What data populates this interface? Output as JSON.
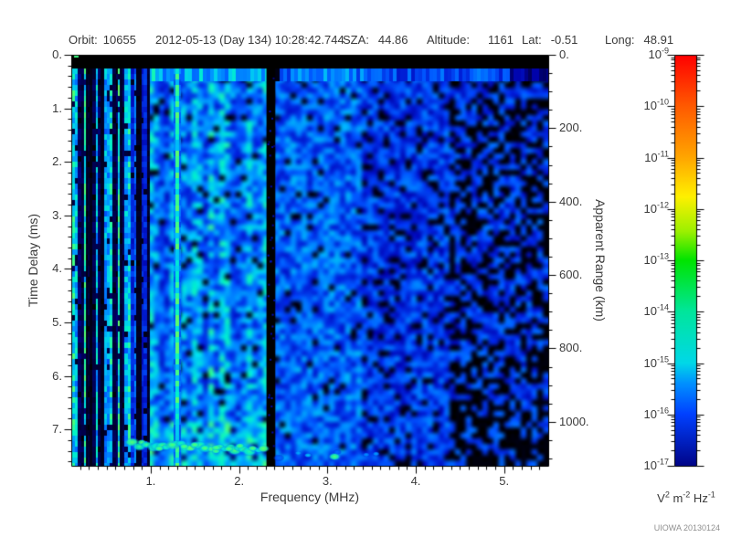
{
  "header": {
    "items": [
      {
        "label": "Orbit:",
        "value": "10655"
      },
      {
        "label": "",
        "value": "2012-05-13 (Day 134) 10:28:42.744"
      },
      {
        "label": "SZA:",
        "value": "44.86"
      },
      {
        "label": "Altitude:",
        "value": "1161"
      },
      {
        "label": "Lat:",
        "value": "-0.51"
      },
      {
        "label": "Long:",
        "value": "48.91"
      }
    ]
  },
  "chart_data": {
    "type": "heatmap",
    "xlabel": "Frequency (MHz)",
    "ylabel_left": "Time Delay (ms)",
    "ylabel_right": "Apparent Range (km)",
    "x_axis": {
      "range_mhz": [
        0.1,
        5.5
      ],
      "ticks": [
        1,
        2,
        3,
        4,
        5
      ],
      "tick_labels": [
        "1.",
        "2.",
        "3.",
        "4.",
        "5."
      ],
      "minor_step": 0.1
    },
    "y_axis_time": {
      "range_ms": [
        0,
        7.68
      ],
      "ticks": [
        0,
        1,
        2,
        3,
        4,
        5,
        6,
        7
      ],
      "tick_labels": [
        "0.",
        "1.",
        "2.",
        "3.",
        "4.",
        "5.",
        "6.",
        "7."
      ],
      "minor_step": 0.2
    },
    "y_axis_range": {
      "range_km": [
        0,
        1120
      ],
      "ticks": [
        0,
        200,
        400,
        600,
        800,
        1000
      ],
      "tick_labels": [
        "0.",
        "200.",
        "400.",
        "600.",
        "800.",
        "1000."
      ],
      "minor_step": 50
    },
    "colorbar": {
      "scale": "log",
      "decade_exponents": [
        -9,
        -10,
        -11,
        -12,
        -13,
        -14,
        -15,
        -16,
        -17
      ],
      "unit_parts": [
        {
          "text": "V"
        },
        {
          "sup": "2"
        },
        {
          "text": " m"
        },
        {
          "sup": "-2"
        },
        {
          "text": " Hz"
        },
        {
          "sup": "-1"
        }
      ],
      "gradient": [
        {
          "p": 0.0,
          "c": "#ff0000"
        },
        {
          "p": 0.125,
          "c": "#ff5a00"
        },
        {
          "p": 0.25,
          "c": "#ffa600"
        },
        {
          "p": 0.345,
          "c": "#fff000"
        },
        {
          "p": 0.43,
          "c": "#9cf000"
        },
        {
          "p": 0.5,
          "c": "#00e400"
        },
        {
          "p": 0.625,
          "c": "#00e69c"
        },
        {
          "p": 0.75,
          "c": "#00d8e8"
        },
        {
          "p": 0.8,
          "c": "#0090ff"
        },
        {
          "p": 0.875,
          "c": "#0040ff"
        },
        {
          "p": 1.0,
          "c": "#000488"
        }
      ]
    },
    "features": [
      {
        "name": "transmit-blank-band",
        "time_ms": [
          0,
          0.26
        ],
        "freq_mhz": [
          0.1,
          5.5
        ],
        "desc": "solid black band across top of spectrogram"
      },
      {
        "name": "first-return-bright-row",
        "time_ms": [
          0.26,
          0.5
        ],
        "freq_mhz": [
          0.1,
          5.5
        ],
        "desc": "bright cyan row below blank band, fading toward high frequency"
      },
      {
        "name": "low-frequency-striping",
        "time_ms": [
          0.26,
          7.68
        ],
        "freq_mhz": [
          0.1,
          0.95
        ],
        "desc": "sharp alternating bright-cyan and black vertical stripes; darkest cluster near 0.3-0.5 MHz"
      },
      {
        "name": "bright-vertical-line",
        "freq_mhz": 1.3,
        "time_ms": [
          0.26,
          7.68
        ],
        "desc": "narrow bright cyan-green line spanning full time range"
      },
      {
        "name": "black-vertical-gap",
        "freq_mhz": [
          2.31,
          2.41
        ],
        "time_ms": [
          0.26,
          7.68
        ],
        "desc": "near-black vertical band"
      },
      {
        "name": "surface-echo-trace",
        "time_ms": [
          7.05,
          7.4
        ],
        "freq_mhz": [
          0.78,
          2.33
        ],
        "desc": "bright green-cyan blobby horizontal trace near bottom"
      },
      {
        "name": "surface-echo-faint",
        "time_ms": [
          7.3,
          7.6
        ],
        "freq_mhz": [
          2.45,
          3.6
        ],
        "desc": "weaker scattered green blobs near bottom"
      },
      {
        "name": "mid-band-noise",
        "freq_mhz": [
          0.95,
          3.35
        ],
        "desc": "mottled blue noise with cyan blobs"
      },
      {
        "name": "high-frequency-falloff",
        "freq_mhz": [
          3.35,
          5.5
        ],
        "desc": "dimmer blue, increasing black patches above 4.4 MHz, darkest at bottom right"
      }
    ],
    "render": {
      "seed": 7,
      "colormap": [
        [
          0.0,
          "#000000"
        ],
        [
          0.08,
          "#000030"
        ],
        [
          0.18,
          "#0000a8"
        ],
        [
          0.3,
          "#0020d8"
        ],
        [
          0.42,
          "#0058ff"
        ],
        [
          0.54,
          "#0098ff"
        ],
        [
          0.64,
          "#00ccf2"
        ],
        [
          0.74,
          "#00f2cc"
        ],
        [
          0.84,
          "#38ff8c"
        ],
        [
          1.0,
          "#78ff50"
        ]
      ]
    }
  },
  "watermark": "UIOWA 20130124"
}
